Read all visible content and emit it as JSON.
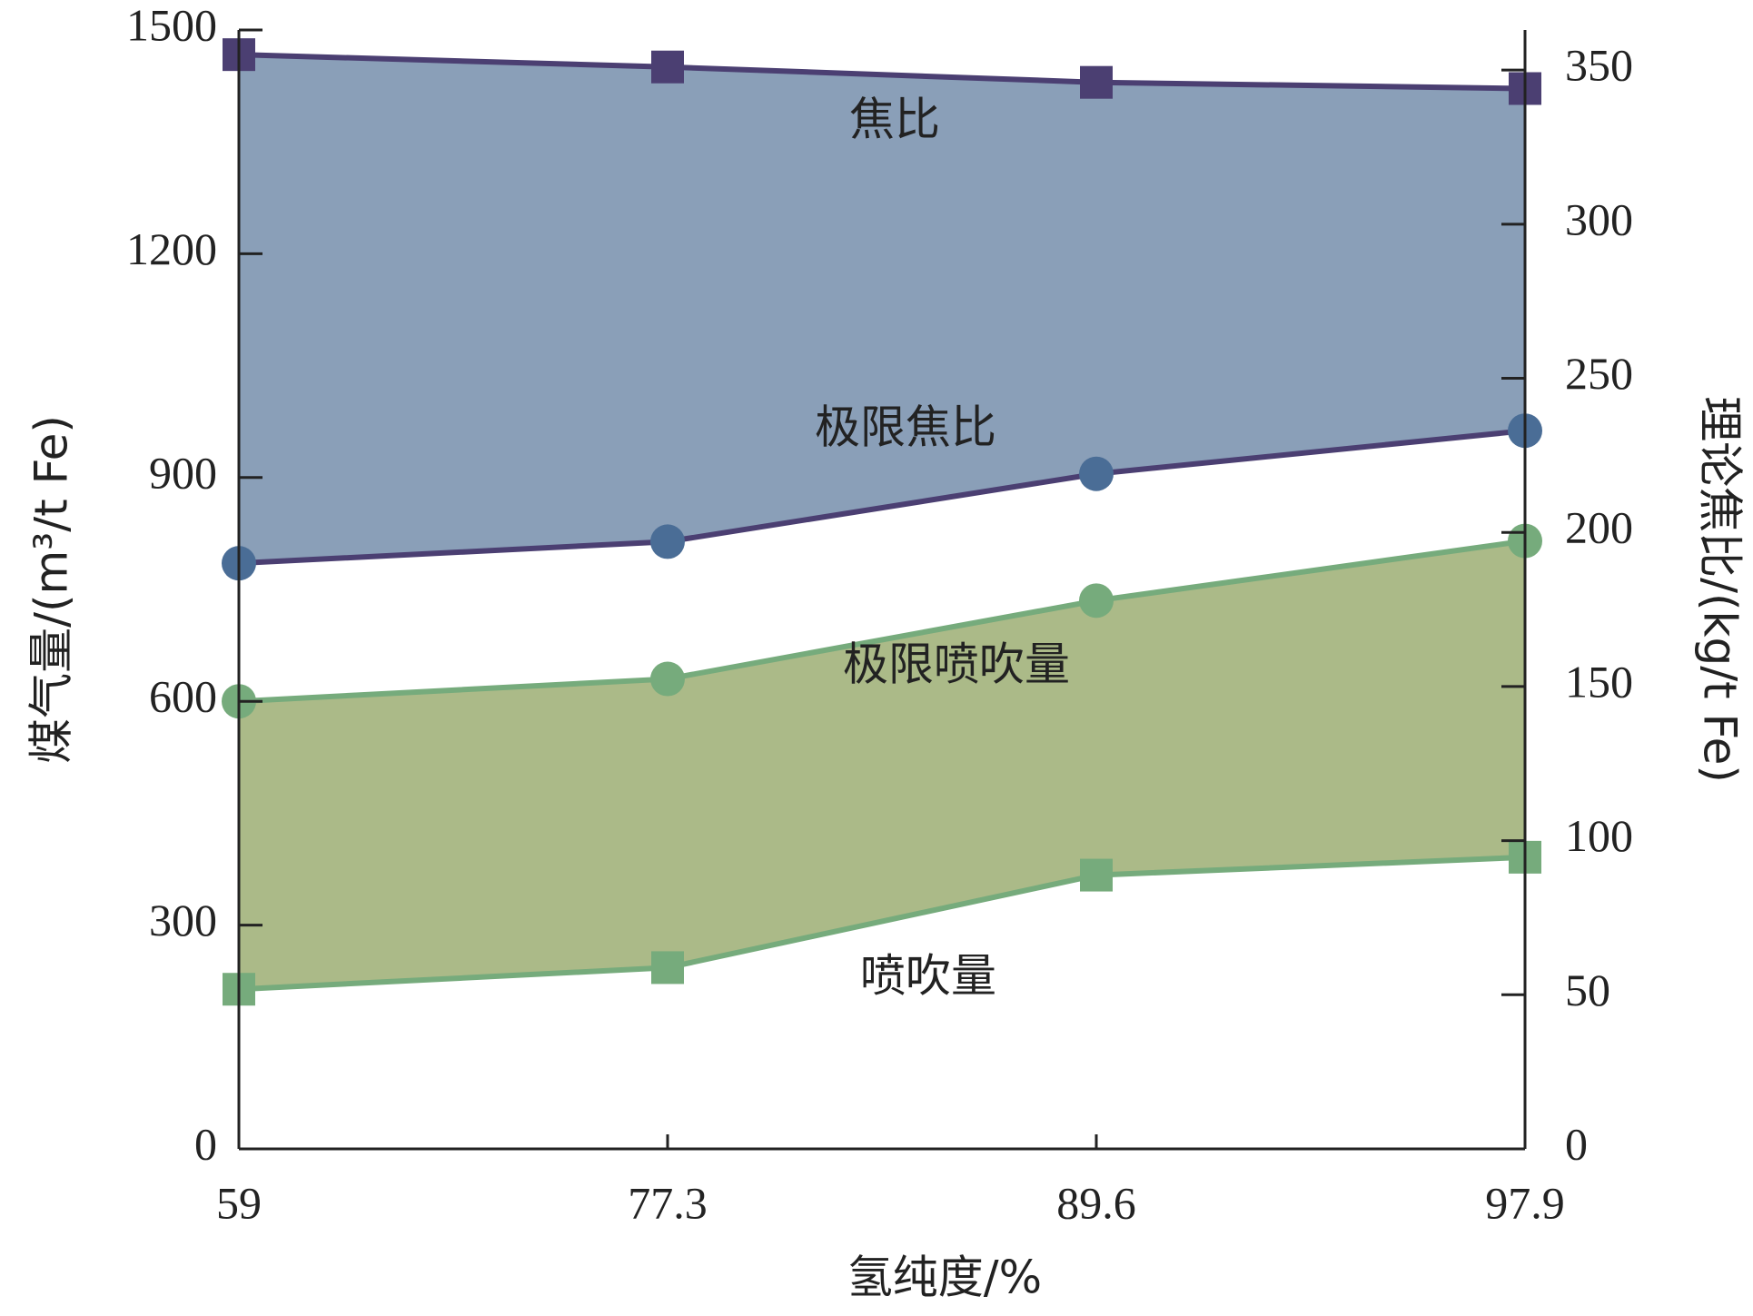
{
  "chart_data": {
    "type": "area_band",
    "x_label": "氢纯度/%",
    "y_label": "煤气量/(m³/t Fe)",
    "y2_label": "理论焦比/(kg/t Fe)",
    "categories": [
      "59",
      "77.3",
      "89.6",
      "97.9"
    ],
    "ylim": [
      0,
      1500
    ],
    "yticks": [
      0,
      300,
      600,
      900,
      1200,
      1500
    ],
    "y2lim": [
      0,
      363
    ],
    "y2ticks": [
      0,
      50,
      100,
      150,
      200,
      250,
      300,
      350
    ],
    "series": [
      {
        "name": "焦比",
        "color": "#4b3f72",
        "marker": "square",
        "axis": "y2",
        "values": [
          355,
          351,
          346,
          344
        ],
        "fill": "#8a9fb8",
        "fill_to": 1
      },
      {
        "name": "极限焦比",
        "color": "#4b3f72",
        "marker_color": "#4a6d96",
        "marker": "circle",
        "axis": "y2",
        "values": [
          190,
          197,
          219,
          233
        ]
      },
      {
        "name": "极限喷吹量",
        "color": "#76ab7c",
        "marker": "circle",
        "axis": "y",
        "values": [
          600,
          630,
          735,
          815
        ],
        "fill": "#abba88",
        "fill_to": 3
      },
      {
        "name": "喷吹量",
        "color": "#76ab7c",
        "marker": "square",
        "axis": "y",
        "values": [
          214,
          243,
          367,
          391
        ]
      }
    ]
  }
}
